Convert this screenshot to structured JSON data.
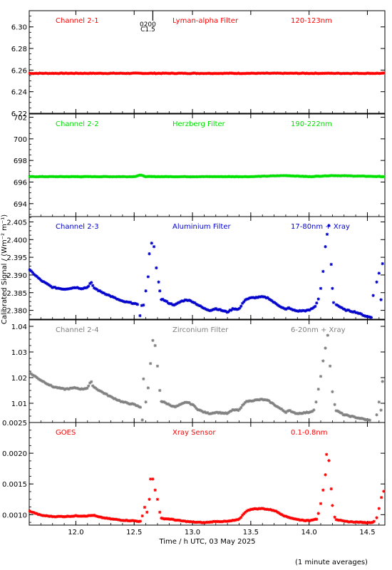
{
  "footer_note": "(1 minute averages)",
  "x_axis": {
    "label": "Time / h UTC, 03 May 2025",
    "range": [
      11.6,
      14.65
    ],
    "ticks": [
      "12.0",
      "12.5",
      "13.0",
      "13.5",
      "14.0",
      "14.5"
    ],
    "tick_values": [
      12.0,
      12.5,
      13.0,
      13.5,
      14.0,
      14.5
    ]
  },
  "y_axis_label": "Calibrated Signal / (Wm⁻² m⁻¹)",
  "marker": {
    "x": 12.66,
    "label_top": "0200",
    "label_bottom": "C1.5"
  },
  "chart_data": [
    {
      "type": "scatter",
      "labels": [
        "Channel 2-1",
        "Lyman-alpha Filter",
        "120-123nm"
      ],
      "color": "#ff0000",
      "ylim": [
        6.22,
        6.315
      ],
      "yticks": [
        6.22,
        6.24,
        6.26,
        6.28,
        6.3
      ],
      "ytick_labels": [
        "6.22",
        "6.24",
        "6.26",
        "6.28",
        "6.30"
      ],
      "baseline": 6.257,
      "spikes": [],
      "noise": 0.0003,
      "x": [
        11.6,
        12.0,
        12.5,
        13.0,
        13.5,
        14.0,
        14.65
      ],
      "y": [
        6.257,
        6.257,
        6.257,
        6.257,
        6.257,
        6.257,
        6.257
      ]
    },
    {
      "type": "scatter",
      "labels": [
        "Channel 2-2",
        "Herzberg Filter",
        "190-222nm"
      ],
      "color": "#00e000",
      "ylim": [
        692.8,
        702.3
      ],
      "yticks": [
        694,
        696,
        698,
        700,
        702
      ],
      "ytick_labels": [
        "694",
        "696",
        "698",
        "700",
        "702"
      ],
      "baseline": 696.5,
      "spikes": [],
      "noise": 0.02,
      "x": [
        11.6,
        12.0,
        12.5,
        12.55,
        12.6,
        13.0,
        13.5,
        13.8,
        14.0,
        14.2,
        14.65
      ],
      "y": [
        696.5,
        696.5,
        696.5,
        696.65,
        696.5,
        696.5,
        696.5,
        696.6,
        696.5,
        696.6,
        696.5
      ]
    },
    {
      "type": "scatter",
      "labels": [
        "Channel 2-3",
        "Aluminium Filter",
        "17-80nm + Xray"
      ],
      "color": "#0000cc",
      "ylim": [
        2.3775,
        2.4065
      ],
      "yticks": [
        2.38,
        2.385,
        2.39,
        2.395,
        2.4,
        2.405
      ],
      "ytick_labels": [
        "2.380",
        "2.385",
        "2.390",
        "2.395",
        "2.400",
        "2.405"
      ],
      "baseline": null,
      "spikes": [
        [
          12.55,
          2.3785
        ],
        [
          12.58,
          2.3815
        ],
        [
          12.6,
          2.3855
        ],
        [
          12.62,
          2.3895
        ],
        [
          12.63,
          2.396
        ],
        [
          12.65,
          2.399
        ],
        [
          12.67,
          2.398
        ],
        [
          12.69,
          2.392
        ],
        [
          12.71,
          2.388
        ],
        [
          12.72,
          2.3855
        ],
        [
          14.08,
          2.3832
        ],
        [
          14.1,
          2.3862
        ],
        [
          14.12,
          2.391
        ],
        [
          14.14,
          2.398
        ],
        [
          14.155,
          2.4015
        ],
        [
          14.17,
          2.404
        ],
        [
          14.19,
          2.393
        ],
        [
          14.2,
          2.3862
        ],
        [
          14.21,
          2.3822
        ],
        [
          14.55,
          2.3842
        ],
        [
          14.58,
          2.388
        ],
        [
          14.6,
          2.3905
        ],
        [
          14.63,
          2.3932
        ]
      ],
      "noise": 0.00015,
      "x": [
        11.6,
        11.65,
        11.7,
        11.8,
        11.9,
        12.0,
        12.05,
        12.1,
        12.13,
        12.15,
        12.2,
        12.3,
        12.4,
        12.5,
        12.55,
        12.7,
        12.75,
        12.8,
        12.85,
        12.9,
        12.95,
        13.0,
        13.05,
        13.1,
        13.15,
        13.2,
        13.3,
        13.35,
        13.4,
        13.45,
        13.5,
        13.6,
        13.65,
        13.7,
        13.75,
        13.8,
        13.83,
        13.85,
        13.9,
        14.0,
        14.05,
        14.08,
        14.21,
        14.3,
        14.4,
        14.5,
        14.55,
        14.6,
        14.65
      ],
      "y": [
        2.3915,
        2.39,
        2.3885,
        2.3865,
        2.386,
        2.3865,
        2.3862,
        2.3865,
        2.388,
        2.3865,
        2.3855,
        2.384,
        2.3825,
        2.382,
        2.3812,
        2.3835,
        2.383,
        2.382,
        2.3815,
        2.3825,
        2.383,
        2.3825,
        2.3815,
        2.3805,
        2.38,
        2.3805,
        2.3795,
        2.3805,
        2.3803,
        2.383,
        2.3835,
        2.3838,
        2.3835,
        2.3822,
        2.3812,
        2.3802,
        2.3808,
        2.3802,
        2.3798,
        2.38,
        2.381,
        2.3832,
        2.3822,
        2.3802,
        2.3795,
        2.3782,
        2.378,
        2.3795,
        2.3902
      ]
    },
    {
      "type": "scatter",
      "labels": [
        "Channel 2-4",
        "Zirconium Filter",
        "6-20nm + Xray"
      ],
      "color": "#808080",
      "ylim": [
        1.0025,
        1.0425
      ],
      "yticks": [
        1.01,
        1.02,
        1.03,
        1.04
      ],
      "ytick_labels": [
        "1.01",
        "1.02",
        "1.03",
        "1.04"
      ],
      "baseline": null,
      "spikes": [
        [
          12.57,
          1.0035
        ],
        [
          12.58,
          1.0195
        ],
        [
          12.6,
          1.0105
        ],
        [
          12.62,
          1.016
        ],
        [
          12.64,
          1.0255
        ],
        [
          12.66,
          1.0345
        ],
        [
          12.68,
          1.0325
        ],
        [
          12.7,
          1.0245
        ],
        [
          12.72,
          1.015
        ],
        [
          14.06,
          1.0105
        ],
        [
          14.08,
          1.0155
        ],
        [
          14.1,
          1.0205
        ],
        [
          14.12,
          1.0265
        ],
        [
          14.14,
          1.0315
        ],
        [
          14.16,
          1.0365
        ],
        [
          14.18,
          1.0245
        ],
        [
          14.2,
          1.0145
        ],
        [
          14.22,
          1.0095
        ],
        [
          14.55,
          1.0025
        ],
        [
          14.58,
          1.0055
        ],
        [
          14.6,
          1.0105
        ],
        [
          14.63,
          1.0185
        ]
      ],
      "noise": 0.0002,
      "x": [
        11.6,
        11.65,
        11.7,
        11.8,
        11.9,
        12.0,
        12.05,
        12.1,
        12.13,
        12.15,
        12.2,
        12.3,
        12.4,
        12.5,
        12.55,
        12.72,
        12.75,
        12.8,
        12.85,
        12.9,
        12.95,
        13.0,
        13.05,
        13.1,
        13.15,
        13.2,
        13.3,
        13.35,
        13.4,
        13.45,
        13.5,
        13.6,
        13.65,
        13.7,
        13.75,
        13.8,
        13.83,
        13.85,
        13.9,
        14.0,
        14.05,
        14.22,
        14.3,
        14.4,
        14.5,
        14.55,
        14.6,
        14.65
      ],
      "y": [
        1.022,
        1.0205,
        1.019,
        1.0165,
        1.0155,
        1.016,
        1.0155,
        1.016,
        1.0185,
        1.0165,
        1.015,
        1.0125,
        1.0105,
        1.0095,
        1.0085,
        1.011,
        1.0105,
        1.0095,
        1.0085,
        1.0095,
        1.0105,
        1.0095,
        1.0075,
        1.0065,
        1.006,
        1.0065,
        1.006,
        1.0075,
        1.0072,
        1.0105,
        1.011,
        1.0115,
        1.011,
        1.0095,
        1.008,
        1.0065,
        1.0075,
        1.0065,
        1.006,
        1.0065,
        1.0075,
        1.0075,
        1.0055,
        1.0045,
        1.0035,
        1.003,
        1.005,
        1.0115
      ]
    },
    {
      "type": "scatter",
      "labels": [
        "GOES",
        "Xray Sensor",
        "0.1-0.8nm"
      ],
      "color": "#ff0000",
      "ylim": [
        0.00083,
        0.0025
      ],
      "yticks": [
        0.001,
        0.0015,
        0.002,
        0.0025
      ],
      "ytick_labels": [
        "0.0010",
        "0.0015",
        "0.0020",
        "0.0025"
      ],
      "baseline": null,
      "spikes": [
        [
          12.57,
          0.00098
        ],
        [
          12.59,
          0.00112
        ],
        [
          12.61,
          0.00104
        ],
        [
          12.63,
          0.00125
        ],
        [
          12.64,
          0.00158
        ],
        [
          12.66,
          0.00158
        ],
        [
          12.68,
          0.0014
        ],
        [
          12.7,
          0.00125
        ],
        [
          12.72,
          0.00104
        ],
        [
          14.08,
          0.00102
        ],
        [
          14.1,
          0.00118
        ],
        [
          14.12,
          0.0014
        ],
        [
          14.14,
          0.00165
        ],
        [
          14.15,
          0.00198
        ],
        [
          14.17,
          0.00188
        ],
        [
          14.19,
          0.00142
        ],
        [
          14.2,
          0.00115
        ],
        [
          14.22,
          0.00096
        ],
        [
          14.58,
          0.00095
        ],
        [
          14.6,
          0.0011
        ],
        [
          14.62,
          0.00128
        ],
        [
          14.64,
          0.00138
        ]
      ],
      "noise": 6e-06,
      "x": [
        11.6,
        11.7,
        11.8,
        11.9,
        12.0,
        12.1,
        12.15,
        12.2,
        12.3,
        12.4,
        12.5,
        12.55,
        12.72,
        12.8,
        12.9,
        13.0,
        13.1,
        13.2,
        13.3,
        13.4,
        13.45,
        13.5,
        13.6,
        13.7,
        13.8,
        13.9,
        14.0,
        14.05,
        14.22,
        14.3,
        14.4,
        14.5,
        14.55,
        14.65
      ],
      "y": [
        0.00106,
        0.00099,
        0.00097,
        0.00097,
        0.00098,
        0.00098,
        0.00099,
        0.00096,
        0.00093,
        0.00091,
        0.0009,
        0.00089,
        0.00094,
        0.00093,
        0.0009,
        0.00088,
        0.00087,
        0.00089,
        0.00089,
        0.00092,
        0.00104,
        0.00109,
        0.0011,
        0.00107,
        0.00097,
        0.00092,
        0.0009,
        0.00093,
        0.00093,
        0.00089,
        0.00088,
        0.00087,
        0.00088,
        0.00096
      ]
    }
  ]
}
